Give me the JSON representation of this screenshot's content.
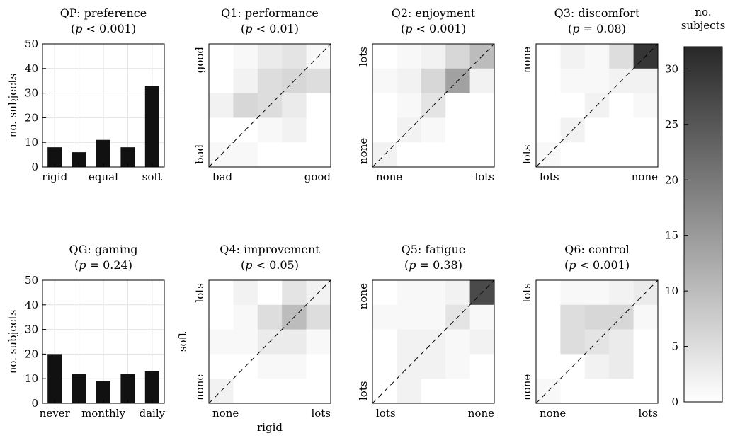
{
  "figure": {
    "colorbar": {
      "label_line1": "no.",
      "label_line2": "subjects",
      "min": 0,
      "max": 32,
      "ticks": [
        0,
        5,
        10,
        15,
        20,
        25,
        30
      ]
    }
  },
  "chart_data": [
    {
      "id": "qp",
      "type": "bar",
      "title": "QP: preference",
      "subtitle": "(p < 0.001)",
      "categories": [
        "rigid",
        "",
        "equal",
        "",
        "soft"
      ],
      "values": [
        8,
        6,
        11,
        8,
        33
      ],
      "ylabel": "no. subjects",
      "ylim": [
        0,
        50
      ],
      "yticks": [
        0,
        10,
        20,
        30,
        40,
        50
      ],
      "grid": true
    },
    {
      "id": "q1",
      "type": "heatmap",
      "title": "Q1: performance",
      "subtitle": "(p < 0.01)",
      "xlabel": "",
      "ylabel": "",
      "x_ends": [
        "bad",
        "good"
      ],
      "y_ends": [
        "bad",
        "good"
      ],
      "values": [
        [
          0,
          1,
          3,
          4,
          1
        ],
        [
          0,
          2,
          5,
          6,
          5
        ],
        [
          2,
          6,
          5,
          3,
          0
        ],
        [
          0,
          0,
          1,
          2,
          0
        ],
        [
          1,
          1,
          0,
          0,
          0
        ]
      ]
    },
    {
      "id": "q2",
      "type": "heatmap",
      "title": "Q2: enjoyment",
      "subtitle": "(p < 0.001)",
      "x_ends": [
        "none",
        "lots"
      ],
      "y_ends": [
        "none",
        "lots"
      ],
      "values": [
        [
          0,
          1,
          2,
          6,
          10
        ],
        [
          1,
          2,
          6,
          14,
          2
        ],
        [
          0,
          1,
          4,
          0,
          0
        ],
        [
          0,
          2,
          1,
          0,
          0
        ],
        [
          2,
          0,
          0,
          0,
          0
        ]
      ]
    },
    {
      "id": "q3",
      "type": "heatmap",
      "title": "Q3: discomfort",
      "subtitle": "(p = 0.08)",
      "x_ends": [
        "lots",
        "none"
      ],
      "y_ends": [
        "lots",
        "none"
      ],
      "values": [
        [
          0,
          2,
          1,
          5,
          30
        ],
        [
          0,
          1,
          1,
          2,
          2
        ],
        [
          0,
          0,
          2,
          0,
          1
        ],
        [
          0,
          2,
          0,
          0,
          0
        ],
        [
          1,
          0,
          0,
          0,
          0
        ]
      ]
    },
    {
      "id": "qg",
      "type": "bar",
      "title": "QG: gaming",
      "subtitle": "(p = 0.24)",
      "categories": [
        "never",
        "",
        "monthly",
        "",
        "daily"
      ],
      "values": [
        20,
        12,
        9,
        12,
        13
      ],
      "ylabel": "no. subjects",
      "ylim": [
        0,
        50
      ],
      "yticks": [
        0,
        10,
        20,
        30,
        40,
        50
      ],
      "grid": true
    },
    {
      "id": "q4",
      "type": "heatmap",
      "title": "Q4: improvement",
      "subtitle": "(p < 0.05)",
      "xlabel": "rigid",
      "ylabel": "soft",
      "x_ends": [
        "none",
        "lots"
      ],
      "y_ends": [
        "none",
        "lots"
      ],
      "values": [
        [
          0,
          2,
          0,
          4,
          2
        ],
        [
          0,
          1,
          5,
          10,
          5
        ],
        [
          1,
          1,
          3,
          3,
          1
        ],
        [
          0,
          0,
          1,
          1,
          0
        ],
        [
          2,
          0,
          0,
          0,
          0
        ]
      ]
    },
    {
      "id": "q5",
      "type": "heatmap",
      "title": "Q5: fatigue",
      "subtitle": "(p = 0.38)",
      "x_ends": [
        "lots",
        "none"
      ],
      "y_ends": [
        "lots",
        "none"
      ],
      "values": [
        [
          0,
          1,
          1,
          2,
          27
        ],
        [
          1,
          1,
          1,
          4,
          1
        ],
        [
          0,
          2,
          2,
          1,
          2
        ],
        [
          0,
          2,
          2,
          1,
          0
        ],
        [
          0,
          2,
          0,
          0,
          0
        ]
      ]
    },
    {
      "id": "q6",
      "type": "heatmap",
      "title": "Q6: control",
      "subtitle": "(p < 0.001)",
      "x_ends": [
        "none",
        "lots"
      ],
      "y_ends": [
        "none",
        "lots"
      ],
      "values": [
        [
          0,
          1,
          1,
          2,
          3
        ],
        [
          0,
          5,
          6,
          6,
          1
        ],
        [
          0,
          5,
          4,
          3,
          0
        ],
        [
          0,
          0,
          2,
          3,
          0
        ],
        [
          1,
          0,
          0,
          0,
          0
        ]
      ]
    }
  ]
}
